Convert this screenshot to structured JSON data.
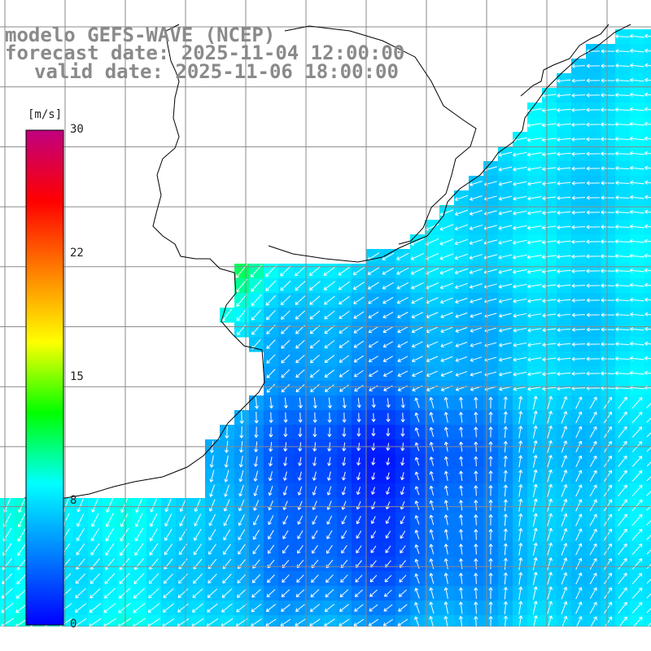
{
  "title": {
    "line1": "modelo GEFS-WAVE (NCEP)",
    "line2": "forecast date: 2025-11-04 12:00:00",
    "line3": "valid date: 2025-11-06 18:00:00"
  },
  "colorbar": {
    "unit": "[m/s]",
    "ticks": [
      "30",
      "22",
      "15",
      "8",
      "0"
    ],
    "tick_values": [
      30,
      22,
      15,
      8,
      0
    ],
    "vmin": 0,
    "vmax": 30,
    "colors": [
      "#0000ff",
      "#0080ff",
      "#00ffff",
      "#00ff00",
      "#ffff00",
      "#ff8000",
      "#ff0000",
      "#c00080"
    ]
  },
  "map": {
    "field": "wind speed (m/s) with direction arrows",
    "land_color": "#ffffff",
    "grid_color": "#8a8a8a",
    "arrow_color": "#ffffff"
  }
}
